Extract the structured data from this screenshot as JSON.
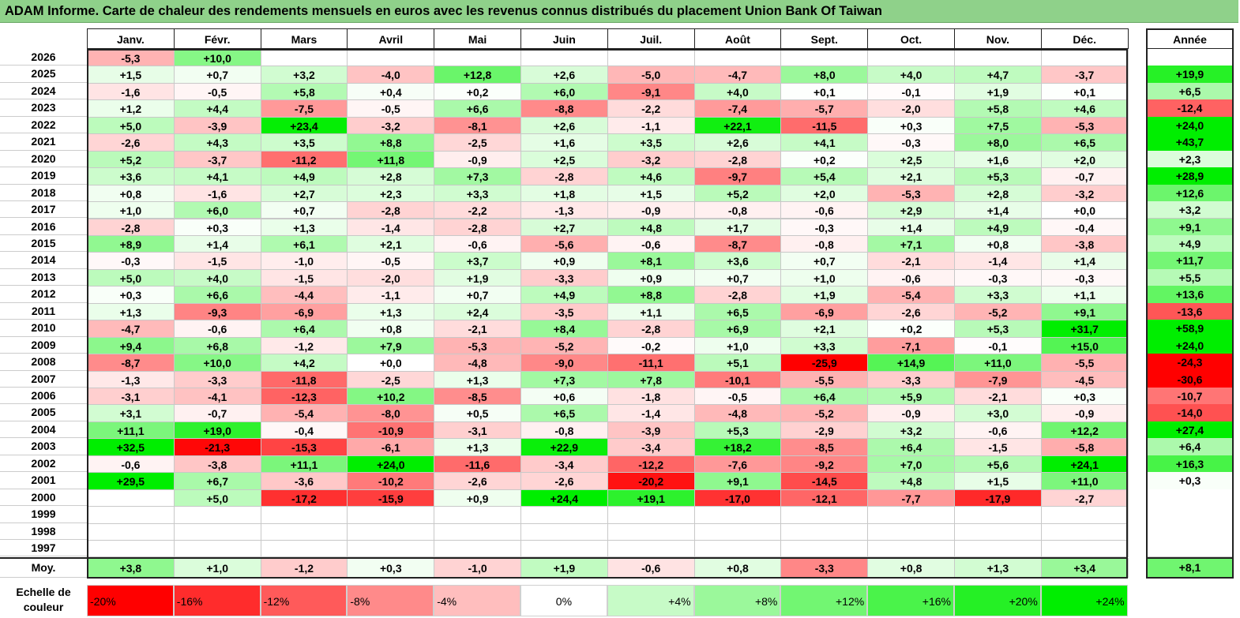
{
  "title": "ADAM Informe. Carte de chaleur des rendements mensuels en euros avec les revenus connus distribués du placement Union Bank Of Taiwan",
  "colors": {
    "neg_max": "#ff0000",
    "zero": "#ffffff",
    "pos_max": "#00ee00",
    "header_band": "#8fd18a"
  },
  "chart_data": {
    "type": "heatmap",
    "months": [
      "Janv.",
      "Févr.",
      "Mars",
      "Avril",
      "Mai",
      "Juin",
      "Juil.",
      "Août",
      "Sept.",
      "Oct.",
      "Nov.",
      "Déc."
    ],
    "annual_header": "Année",
    "rows": [
      {
        "year": "2026",
        "values": [
          "-5,3",
          "+10,0",
          "",
          "",
          "",
          "",
          "",
          "",
          "",
          "",
          "",
          ""
        ],
        "annual": ""
      },
      {
        "year": "2025",
        "values": [
          "+1,5",
          "+0,7",
          "+3,2",
          "-4,0",
          "+12,8",
          "+2,6",
          "-5,0",
          "-4,7",
          "+8,0",
          "+4,0",
          "+4,7",
          "-3,7"
        ],
        "annual": "+19,9"
      },
      {
        "year": "2024",
        "values": [
          "-1,6",
          "-0,5",
          "+5,8",
          "+0,4",
          "+0,2",
          "+6,0",
          "-9,1",
          "+4,0",
          "+0,1",
          "-0,1",
          "+1,9",
          "+0,1"
        ],
        "annual": "+6,5"
      },
      {
        "year": "2023",
        "values": [
          "+1,2",
          "+4,4",
          "-7,5",
          "-0,5",
          "+6,6",
          "-8,8",
          "-2,2",
          "-7,4",
          "-5,7",
          "-2,0",
          "+5,8",
          "+4,6"
        ],
        "annual": "-12,4"
      },
      {
        "year": "2022",
        "values": [
          "+5,0",
          "-3,9",
          "+23,4",
          "-3,2",
          "-8,1",
          "+2,6",
          "-1,1",
          "+22,1",
          "-11,5",
          "+0,3",
          "+7,5",
          "-5,3"
        ],
        "annual": "+24,0"
      },
      {
        "year": "2021",
        "values": [
          "-2,6",
          "+4,3",
          "+3,5",
          "+8,8",
          "-2,5",
          "+1,6",
          "+3,5",
          "+2,6",
          "+4,1",
          "-0,3",
          "+8,0",
          "+6,5"
        ],
        "annual": "+43,7"
      },
      {
        "year": "2020",
        "values": [
          "+5,2",
          "-3,7",
          "-11,2",
          "+11,8",
          "-0,9",
          "+2,5",
          "-3,2",
          "-2,8",
          "+0,2",
          "+2,5",
          "+1,6",
          "+2,0"
        ],
        "annual": "+2,3"
      },
      {
        "year": "2019",
        "values": [
          "+3,6",
          "+4,1",
          "+4,9",
          "+2,8",
          "+7,3",
          "-2,8",
          "+4,6",
          "-9,7",
          "+5,4",
          "+2,1",
          "+5,3",
          "-0,7"
        ],
        "annual": "+28,9"
      },
      {
        "year": "2018",
        "values": [
          "+0,8",
          "-1,6",
          "+2,7",
          "+2,3",
          "+3,3",
          "+1,8",
          "+1,5",
          "+5,2",
          "+2,0",
          "-5,3",
          "+2,8",
          "-3,2"
        ],
        "annual": "+12,6"
      },
      {
        "year": "2017",
        "values": [
          "+1,0",
          "+6,0",
          "+0,7",
          "-2,8",
          "-2,2",
          "-1,3",
          "-0,9",
          "-0,8",
          "-0,6",
          "+2,9",
          "+1,4",
          "+0,0"
        ],
        "annual": "+3,2"
      },
      {
        "year": "2016",
        "values": [
          "-2,8",
          "+0,3",
          "+1,3",
          "-1,4",
          "-2,8",
          "+2,7",
          "+4,8",
          "+1,7",
          "-0,3",
          "+1,4",
          "+4,9",
          "-0,4"
        ],
        "annual": "+9,1"
      },
      {
        "year": "2015",
        "values": [
          "+8,9",
          "+1,4",
          "+6,1",
          "+2,1",
          "-0,6",
          "-5,6",
          "-0,6",
          "-8,7",
          "-0,8",
          "+7,1",
          "+0,8",
          "-3,8"
        ],
        "annual": "+4,9"
      },
      {
        "year": "2014",
        "values": [
          "-0,3",
          "-1,5",
          "-1,0",
          "-0,5",
          "+3,7",
          "+0,9",
          "+8,1",
          "+3,6",
          "+0,7",
          "-2,1",
          "-1,4",
          "+1,4"
        ],
        "annual": "+11,7"
      },
      {
        "year": "2013",
        "values": [
          "+5,0",
          "+4,0",
          "-1,5",
          "-2,0",
          "+1,9",
          "-3,3",
          "+0,9",
          "+0,7",
          "+1,0",
          "-0,6",
          "-0,3",
          "-0,3"
        ],
        "annual": "+5,5"
      },
      {
        "year": "2012",
        "values": [
          "+0,3",
          "+6,6",
          "-4,4",
          "-1,1",
          "+0,7",
          "+4,9",
          "+8,8",
          "-2,8",
          "+1,9",
          "-5,4",
          "+3,3",
          "+1,1"
        ],
        "annual": "+13,6"
      },
      {
        "year": "2011",
        "values": [
          "+1,3",
          "-9,3",
          "-6,9",
          "+1,3",
          "+2,4",
          "-3,5",
          "+1,1",
          "+6,5",
          "-6,9",
          "-2,6",
          "-5,2",
          "+9,1"
        ],
        "annual": "-13,6"
      },
      {
        "year": "2010",
        "values": [
          "-4,7",
          "-0,6",
          "+6,4",
          "+0,8",
          "-2,1",
          "+8,4",
          "-2,8",
          "+6,9",
          "+2,1",
          "+0,2",
          "+5,3",
          "+31,7"
        ],
        "annual": "+58,9"
      },
      {
        "year": "2009",
        "values": [
          "+9,4",
          "+6,8",
          "-1,2",
          "+7,9",
          "-5,3",
          "-5,2",
          "-0,2",
          "+1,0",
          "+3,3",
          "-7,1",
          "-0,1",
          "+15,0"
        ],
        "annual": "+24,0"
      },
      {
        "year": "2008",
        "values": [
          "-8,7",
          "+10,0",
          "+4,2",
          "+0,0",
          "-4,8",
          "-9,0",
          "-11,1",
          "+5,1",
          "-25,9",
          "+14,9",
          "+11,0",
          "-5,5"
        ],
        "annual": "-24,3"
      },
      {
        "year": "2007",
        "values": [
          "-1,3",
          "-3,3",
          "-11,8",
          "-2,5",
          "+1,3",
          "+7,3",
          "+7,8",
          "-10,1",
          "-5,5",
          "-3,3",
          "-7,9",
          "-4,5"
        ],
        "annual": "-30,6"
      },
      {
        "year": "2006",
        "values": [
          "-3,1",
          "-4,1",
          "-12,3",
          "+10,2",
          "-8,5",
          "+0,6",
          "-1,8",
          "-0,5",
          "+6,4",
          "+5,9",
          "-2,1",
          "+0,3"
        ],
        "annual": "-10,7"
      },
      {
        "year": "2005",
        "values": [
          "+3,1",
          "-0,7",
          "-5,4",
          "-8,0",
          "+0,5",
          "+6,5",
          "-1,4",
          "-4,8",
          "-5,2",
          "-0,9",
          "+3,0",
          "-0,9"
        ],
        "annual": "-14,0"
      },
      {
        "year": "2004",
        "values": [
          "+11,1",
          "+19,0",
          "-0,4",
          "-10,9",
          "-3,1",
          "-0,8",
          "-3,9",
          "+5,3",
          "-2,9",
          "+3,2",
          "-0,6",
          "+12,2"
        ],
        "annual": "+27,4"
      },
      {
        "year": "2003",
        "values": [
          "+32,5",
          "-21,3",
          "-15,3",
          "-6,1",
          "+1,3",
          "+22,9",
          "-3,4",
          "+18,2",
          "-8,5",
          "+6,4",
          "-1,5",
          "-5,8"
        ],
        "annual": "+6,4"
      },
      {
        "year": "2002",
        "values": [
          "-0,6",
          "-3,8",
          "+11,1",
          "+24,0",
          "-11,6",
          "-3,4",
          "-12,2",
          "-7,6",
          "-9,2",
          "+7,0",
          "+5,6",
          "+24,1"
        ],
        "annual": "+16,3"
      },
      {
        "year": "2001",
        "values": [
          "+29,5",
          "+6,7",
          "-3,6",
          "-10,2",
          "-2,6",
          "-2,6",
          "-20,2",
          "+9,1",
          "-14,5",
          "+4,8",
          "+1,5",
          "+11,0"
        ],
        "annual": "+0,3"
      },
      {
        "year": "2000",
        "values": [
          "",
          "+5,0",
          "-17,2",
          "-15,9",
          "+0,9",
          "+24,4",
          "+19,1",
          "-17,0",
          "-12,1",
          "-7,7",
          "-17,9",
          "-2,7"
        ],
        "annual": ""
      },
      {
        "year": "1999",
        "values": [
          "",
          "",
          "",
          "",
          "",
          "",
          "",
          "",
          "",
          "",
          "",
          ""
        ],
        "annual": ""
      },
      {
        "year": "1998",
        "values": [
          "",
          "",
          "",
          "",
          "",
          "",
          "",
          "",
          "",
          "",
          "",
          ""
        ],
        "annual": ""
      },
      {
        "year": "1997",
        "values": [
          "",
          "",
          "",
          "",
          "",
          "",
          "",
          "",
          "",
          "",
          "",
          ""
        ],
        "annual": ""
      }
    ],
    "average": {
      "label": "Moy.",
      "values": [
        "+3,8",
        "+1,0",
        "-1,2",
        "+0,3",
        "-1,0",
        "+1,9",
        "-0,6",
        "+0,8",
        "-3,3",
        "+0,8",
        "+1,3",
        "+3,4"
      ],
      "annual": "+8,1"
    },
    "color_scale": {
      "label": "Echelle de couleur",
      "stops": [
        "-20%",
        "-16%",
        "-12%",
        "-8%",
        "-4%",
        "0%",
        "+4%",
        "+8%",
        "+12%",
        "+16%",
        "+20%",
        "+24%"
      ]
    }
  }
}
